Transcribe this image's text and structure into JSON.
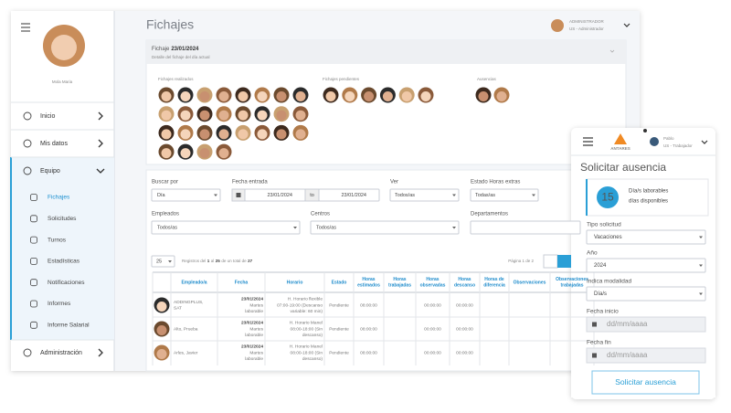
{
  "sidebar": {
    "user_name": "Mola Maria",
    "menu": [
      "Inicio",
      "Mis datos",
      "Equipo"
    ],
    "submenu": [
      "Fichajes",
      "Solicitudes",
      "Turnos",
      "Estadísticas",
      "Notificaciones",
      "Informes",
      "Informe Salarial"
    ],
    "admin": "Administración"
  },
  "header": {
    "title": "Fichajes",
    "user": "ADMINISTRADOR",
    "role": "US - Administrador"
  },
  "panel": {
    "label": "Fichaje",
    "date": "23/01/2024",
    "subtitle": "Detalle del fichaje del día actual",
    "sections": [
      "Fichajes realizados",
      "Fichajes pendientes",
      "Ausencias"
    ]
  },
  "filters": {
    "buscar": {
      "label": "Buscar por",
      "value": "Día"
    },
    "fecha": {
      "label": "Fecha entrada",
      "from": "23/01/2024",
      "separator": "to",
      "to": "23/01/2024"
    },
    "ver": {
      "label": "Ver",
      "value": "Todos/as"
    },
    "estado": {
      "label": "Estado Horas extras",
      "value": "Todas/as"
    },
    "empleados": {
      "label": "Empleados",
      "value": "Todos/as"
    },
    "centros": {
      "label": "Centros",
      "value": "Todos/as"
    },
    "departamentos": {
      "label": "Departamentos"
    }
  },
  "table": {
    "page_size": 25,
    "info": [
      "Registros del",
      "1",
      "al",
      "25",
      "de un total de",
      "27"
    ],
    "pagination": "Página 1 de 2",
    "columns": [
      [
        "Empleado/a"
      ],
      [
        "Fecha"
      ],
      [
        "Horario"
      ],
      [
        "Estado"
      ],
      [
        "Horas",
        "estimados"
      ],
      [
        "Horas",
        "trabajadas"
      ],
      [
        "Horas",
        "observadas"
      ],
      [
        "Horas",
        "descanso"
      ],
      [
        "Horas de",
        "diferencia"
      ],
      [
        "Observaciones"
      ],
      [
        "Observaciones",
        "trabajadas"
      ]
    ],
    "rows": [
      {
        "empleado": [
          "ADDINGPLUS,",
          "SAT"
        ],
        "fecha": [
          "23/01/2024",
          "Martes",
          "laborable"
        ],
        "horario": [
          "H. Horario flexible",
          "07:00-19:00 (Descanso",
          "variable: 60 min)"
        ],
        "estado": "Pendiente",
        "horas_estimadas": "08:00:00",
        "horas_observadas": "00:00:00",
        "horas_descanso": "00:00:00"
      },
      {
        "empleado": [
          "Alto, Prueba"
        ],
        "fecha": [
          "23/01/2024",
          "Martes",
          "laborable"
        ],
        "horario": [
          "H. Horario Manel",
          "08:00-18:00 (Sin",
          "descanso)"
        ],
        "estado": "Pendiente",
        "horas_estimadas": "08:00:00",
        "horas_observadas": "00:00:00",
        "horas_descanso": "00:00:00"
      },
      {
        "empleado": [
          "Arles, Javier"
        ],
        "fecha": [
          "23/01/2024",
          "Martes",
          "laborable"
        ],
        "horario": [
          "H. Horario Manel",
          "08:00-18:00 (Sin",
          "descanso)"
        ],
        "estado": "Pendiente",
        "horas_estimadas": "08:00:00",
        "horas_observadas": "00:00:00",
        "horas_descanso": "00:00:00"
      }
    ]
  },
  "mobile": {
    "user": "Pablo",
    "role": "US - Trabajador",
    "logo": "ANTARES",
    "title": "Solicitar ausencia",
    "days": 15,
    "days_label": [
      "Día/s laborables",
      "días disponibles"
    ],
    "fields": [
      {
        "label": "Tipo solicitud",
        "value": "Vacaciones"
      },
      {
        "label": "Año",
        "value": "2024"
      },
      {
        "label": "Indica modalidad",
        "value": "Día/s"
      },
      {
        "label": "Fecha inicio",
        "placeholder": "dd/mm/aaaa"
      },
      {
        "label": "Fecha fin",
        "placeholder": "dd/mm/aaaa"
      }
    ],
    "button": "Solicitar ausencia"
  }
}
